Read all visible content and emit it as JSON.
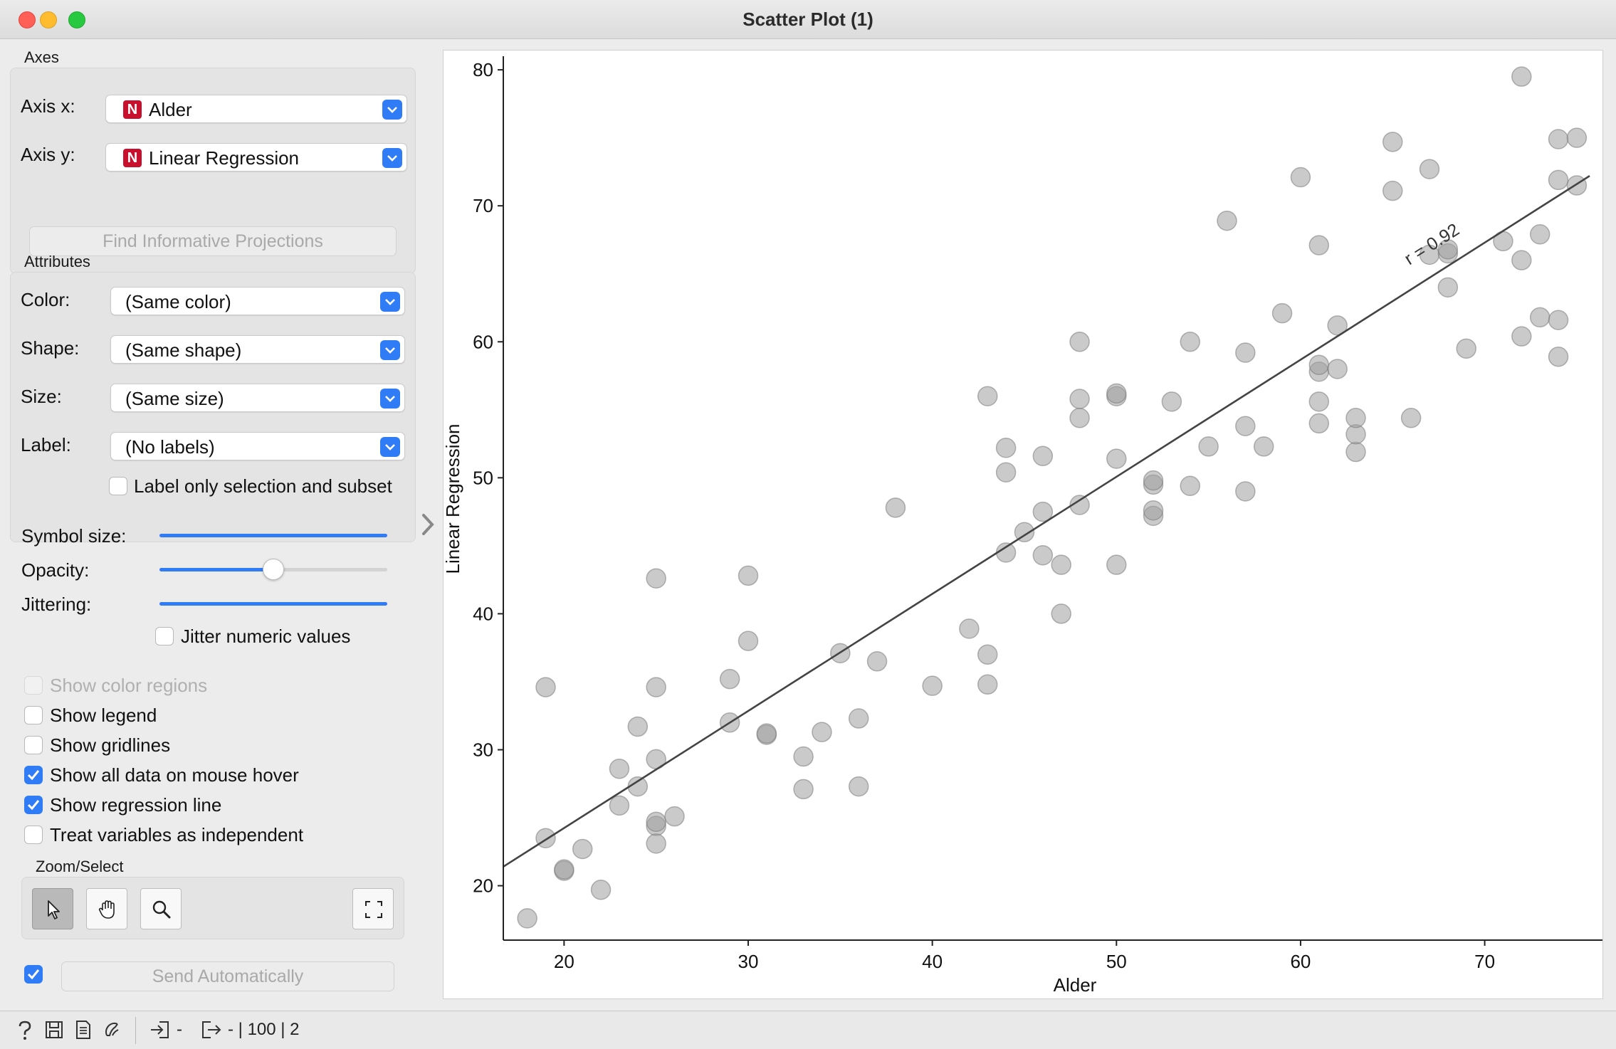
{
  "window": {
    "title": "Scatter Plot (1)"
  },
  "axes_section": {
    "label": "Axes",
    "axis_x": {
      "label": "Axis x:",
      "badge": "N",
      "value": "Alder"
    },
    "axis_y": {
      "label": "Axis y:",
      "badge": "N",
      "value": "Linear Regression"
    },
    "find_projections": "Find Informative Projections"
  },
  "attributes_section": {
    "label": "Attributes",
    "color": {
      "label": "Color:",
      "value": "(Same color)"
    },
    "shape": {
      "label": "Shape:",
      "value": "(Same shape)"
    },
    "size": {
      "label": "Size:",
      "value": "(Same size)"
    },
    "label_attr": {
      "label": "Label:",
      "value": "(No labels)"
    },
    "label_only_selection": {
      "label": "Label only selection and subset",
      "checked": false
    }
  },
  "sliders": {
    "symbol_size": {
      "label": "Symbol size:",
      "fraction": 1.0
    },
    "opacity": {
      "label": "Opacity:",
      "fraction": 0.5
    },
    "jittering": {
      "label": "Jittering:",
      "fraction": 1.0
    },
    "jitter_numeric": {
      "label": "Jitter numeric values",
      "checked": false
    }
  },
  "options": [
    {
      "label": "Show color regions",
      "checked": false,
      "disabled": true
    },
    {
      "label": "Show legend",
      "checked": false,
      "disabled": false
    },
    {
      "label": "Show gridlines",
      "checked": false,
      "disabled": false
    },
    {
      "label": "Show all data on mouse hover",
      "checked": true,
      "disabled": false
    },
    {
      "label": "Show regression line",
      "checked": true,
      "disabled": false
    },
    {
      "label": "Treat variables as independent",
      "checked": false,
      "disabled": false
    }
  ],
  "zoom_select": {
    "label": "Zoom/Select",
    "tools": [
      "pointer-icon",
      "hand-icon",
      "magnifier-icon"
    ],
    "fit": "fit-view-icon"
  },
  "send": {
    "checked": true,
    "label": "Send Automatically"
  },
  "statusbar": {
    "input_text": "-",
    "output_text": "- | 100 | 2"
  },
  "colors": {
    "accent": "#2f7cf6",
    "badge": "#c8102e",
    "point": "#9e9e9e"
  },
  "chart_data": {
    "type": "scatter",
    "xlabel": "Alder",
    "ylabel": "Linear Regression",
    "xlim": [
      16.7,
      75.7
    ],
    "ylim": [
      16.0,
      81.0
    ],
    "xticks": [
      20,
      30,
      40,
      50,
      60,
      70
    ],
    "yticks": [
      20,
      30,
      40,
      50,
      60,
      70,
      80
    ],
    "grid": false,
    "regression_line": {
      "label": "r = 0.92",
      "x": [
        16.7,
        75.7
      ],
      "y": [
        21.4,
        72.2
      ]
    },
    "points": [
      [
        18,
        17.6
      ],
      [
        19,
        23.5
      ],
      [
        19,
        34.6
      ],
      [
        20,
        21.1
      ],
      [
        20,
        21.2
      ],
      [
        21,
        22.7
      ],
      [
        22,
        19.7
      ],
      [
        23,
        25.9
      ],
      [
        23,
        28.6
      ],
      [
        24,
        27.3
      ],
      [
        24,
        31.7
      ],
      [
        25,
        24.4
      ],
      [
        25,
        24.7
      ],
      [
        25,
        23.1
      ],
      [
        25,
        29.3
      ],
      [
        25,
        34.6
      ],
      [
        25,
        42.6
      ],
      [
        26,
        25.1
      ],
      [
        29,
        32.0
      ],
      [
        29,
        35.2
      ],
      [
        30,
        38.0
      ],
      [
        30,
        42.8
      ],
      [
        31,
        31.1
      ],
      [
        31,
        31.2
      ],
      [
        33,
        27.1
      ],
      [
        33,
        29.5
      ],
      [
        34,
        31.3
      ],
      [
        35,
        37.1
      ],
      [
        36,
        32.3
      ],
      [
        36,
        27.3
      ],
      [
        37,
        36.5
      ],
      [
        38,
        47.8
      ],
      [
        40,
        34.7
      ],
      [
        42,
        38.9
      ],
      [
        43,
        37.0
      ],
      [
        43,
        34.8
      ],
      [
        43,
        56.0
      ],
      [
        44,
        44.5
      ],
      [
        44,
        50.4
      ],
      [
        44,
        52.2
      ],
      [
        45,
        46.0
      ],
      [
        46,
        44.3
      ],
      [
        46,
        47.5
      ],
      [
        46,
        51.6
      ],
      [
        47,
        43.6
      ],
      [
        47,
        40.0
      ],
      [
        48,
        48.0
      ],
      [
        48,
        54.4
      ],
      [
        48,
        55.8
      ],
      [
        48,
        60.0
      ],
      [
        50,
        43.6
      ],
      [
        50,
        51.4
      ],
      [
        50,
        56.0
      ],
      [
        50,
        56.2
      ],
      [
        52,
        47.2
      ],
      [
        52,
        47.6
      ],
      [
        52,
        49.5
      ],
      [
        52,
        49.8
      ],
      [
        53,
        55.6
      ],
      [
        54,
        49.4
      ],
      [
        54,
        60.0
      ],
      [
        55,
        52.3
      ],
      [
        56,
        68.9
      ],
      [
        57,
        49.0
      ],
      [
        57,
        53.8
      ],
      [
        57,
        59.2
      ],
      [
        58,
        52.3
      ],
      [
        59,
        62.1
      ],
      [
        60,
        72.1
      ],
      [
        61,
        54.0
      ],
      [
        61,
        55.6
      ],
      [
        61,
        57.8
      ],
      [
        61,
        58.3
      ],
      [
        61,
        67.1
      ],
      [
        62,
        58.0
      ],
      [
        62,
        61.2
      ],
      [
        63,
        51.9
      ],
      [
        63,
        53.2
      ],
      [
        63,
        54.4
      ],
      [
        65,
        71.1
      ],
      [
        65,
        74.7
      ],
      [
        66,
        54.4
      ],
      [
        67,
        66.4
      ],
      [
        67,
        72.7
      ],
      [
        68,
        64.0
      ],
      [
        68,
        66.5
      ],
      [
        68,
        66.8
      ],
      [
        69,
        59.5
      ],
      [
        71,
        67.4
      ],
      [
        72,
        79.5
      ],
      [
        72,
        66.0
      ],
      [
        72,
        60.4
      ],
      [
        73,
        61.8
      ],
      [
        73,
        67.9
      ],
      [
        74,
        71.9
      ],
      [
        74,
        74.9
      ],
      [
        74,
        58.9
      ],
      [
        74,
        61.6
      ],
      [
        75,
        71.5
      ],
      [
        75,
        75.0
      ]
    ]
  }
}
